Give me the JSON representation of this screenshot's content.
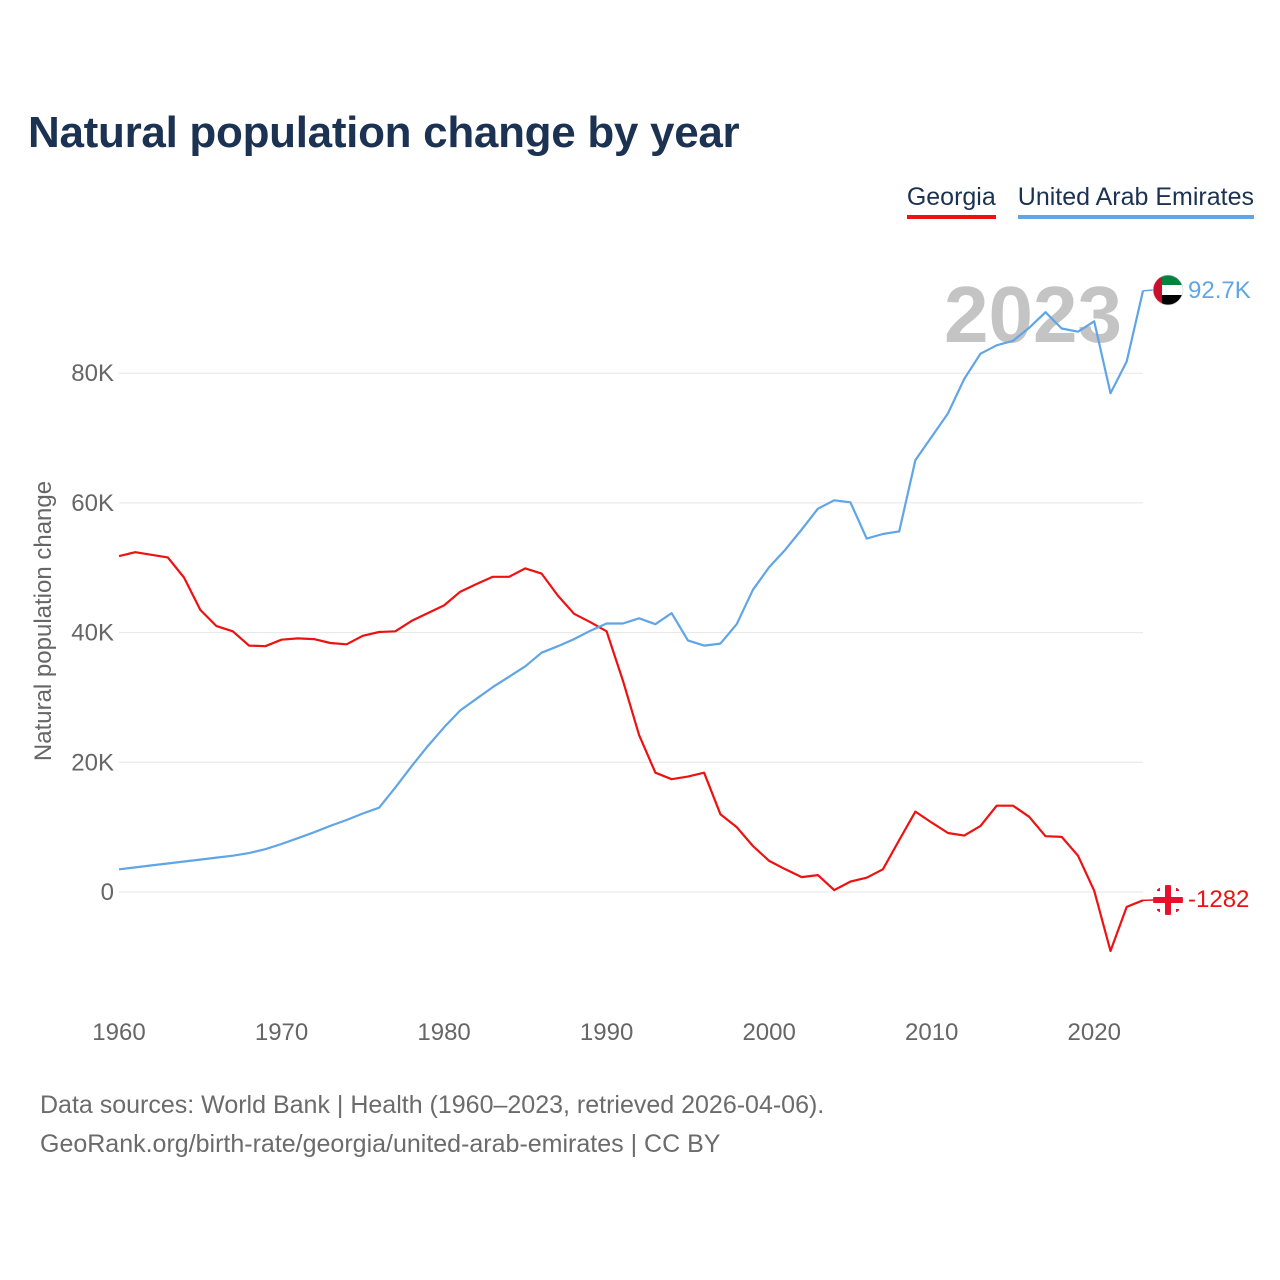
{
  "title": "Natural population change by year",
  "legend": {
    "georgia": "Georgia",
    "uae": "United Arab Emirates"
  },
  "year_label": "2023",
  "end_labels": {
    "georgia": "-1282",
    "uae": "92.7K"
  },
  "footer": {
    "line1": "Data sources: World Bank | Health (1960–2023, retrieved 2026-04-06).",
    "line2": "GeoRank.org/birth-rate/georgia/united-arab-emirates | CC BY"
  },
  "colors": {
    "georgia": "#ee1111",
    "uae": "#60a5e5",
    "grid": "#e6e6e6"
  },
  "icons": {
    "uae_flag": "uae-flag-icon",
    "georgia_flag": "georgia-flag-icon"
  },
  "chart_data": {
    "type": "line",
    "title": "Natural population change by year",
    "xlabel": "",
    "ylabel": "Natural population change",
    "xlim": [
      1960,
      2023
    ],
    "ylim": [
      -15000,
      95000
    ],
    "x_ticks": [
      1960,
      1970,
      1980,
      1990,
      2000,
      2010,
      2020
    ],
    "y_ticks": [
      0,
      20000,
      40000,
      60000,
      80000
    ],
    "y_tick_labels": [
      "0",
      "20K",
      "40K",
      "60K",
      "80K"
    ],
    "grid": true,
    "legend_position": "top-right",
    "x": [
      1960,
      1961,
      1962,
      1963,
      1964,
      1965,
      1966,
      1967,
      1968,
      1969,
      1970,
      1971,
      1972,
      1973,
      1974,
      1975,
      1976,
      1977,
      1978,
      1979,
      1980,
      1981,
      1982,
      1983,
      1984,
      1985,
      1986,
      1987,
      1988,
      1989,
      1990,
      1991,
      1992,
      1993,
      1994,
      1995,
      1996,
      1997,
      1998,
      1999,
      2000,
      2001,
      2002,
      2003,
      2004,
      2005,
      2006,
      2007,
      2008,
      2009,
      2010,
      2011,
      2012,
      2013,
      2014,
      2015,
      2016,
      2017,
      2018,
      2019,
      2020,
      2021,
      2022,
      2023
    ],
    "series": [
      {
        "name": "Georgia",
        "values": [
          51800,
          52400,
          52000,
          51600,
          48500,
          43500,
          41000,
          40200,
          38000,
          37900,
          38900,
          39100,
          39000,
          38400,
          38200,
          39500,
          40100,
          40200,
          41800,
          43000,
          44200,
          46300,
          47500,
          48600,
          48600,
          49900,
          49100,
          45700,
          42900,
          41600,
          40200,
          32600,
          24200,
          18400,
          17400,
          17800,
          18400,
          12000,
          10000,
          7100,
          4800,
          3500,
          2300,
          2600,
          300,
          1600,
          2200,
          3500,
          8000,
          12400,
          10700,
          9100,
          8700,
          10200,
          13300,
          13300,
          11600,
          8600,
          8500,
          5600,
          200,
          -9100,
          -2300,
          -1282
        ]
      },
      {
        "name": "United Arab Emirates",
        "values": [
          3500,
          3800,
          4100,
          4400,
          4700,
          5000,
          5300,
          5600,
          6000,
          6600,
          7400,
          8300,
          9200,
          10200,
          11100,
          12100,
          13000,
          16100,
          19400,
          22500,
          25400,
          28000,
          29800,
          31600,
          33200,
          34800,
          36900,
          37900,
          39000,
          40300,
          41400,
          41400,
          42200,
          41300,
          43000,
          38800,
          38000,
          38300,
          41300,
          46600,
          50100,
          52800,
          55900,
          59100,
          60400,
          60100,
          54500,
          55200,
          55600,
          66600,
          70200,
          73800,
          79100,
          83000,
          84300,
          85000,
          87000,
          89400,
          86900,
          86400,
          88000,
          76900,
          81800,
          92700
        ]
      }
    ]
  }
}
